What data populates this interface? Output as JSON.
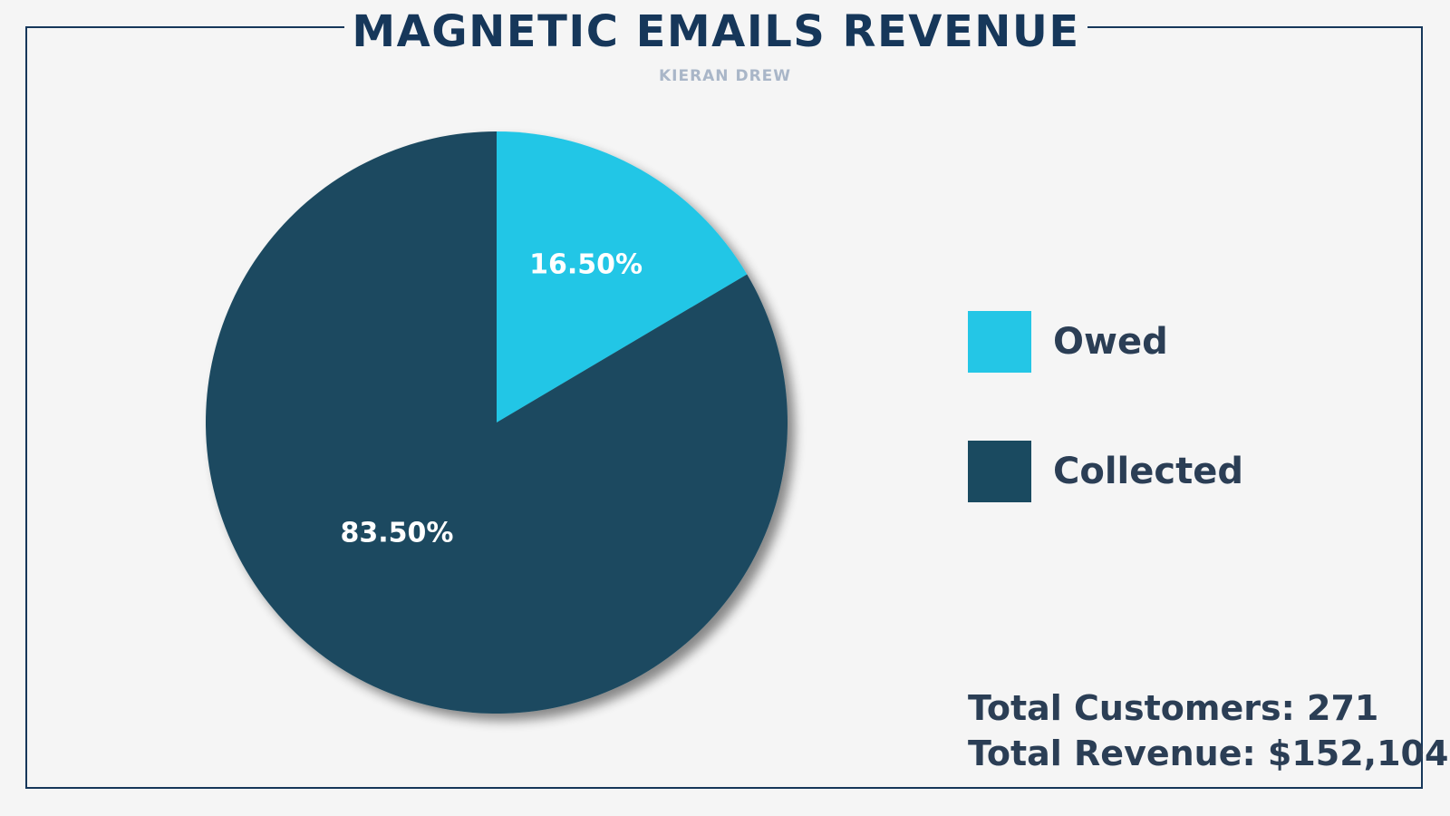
{
  "header": {
    "title": "MAGNETIC EMAILS REVENUE",
    "subtitle": "KIERAN DREW"
  },
  "chart_data": {
    "type": "pie",
    "title": "MAGNETIC EMAILS REVENUE",
    "subtitle": "KIERAN DREW",
    "slices": [
      {
        "label": "Owed",
        "value": 16.5,
        "display": "16.50%",
        "color": "#24c6e6"
      },
      {
        "label": "Collected",
        "value": 83.5,
        "display": "83.50%",
        "color": "#1a4a60"
      }
    ],
    "legend_position": "right"
  },
  "legend": {
    "items": [
      {
        "label": "Owed",
        "color": "#24c6e6"
      },
      {
        "label": "Collected",
        "color": "#1a4a60"
      }
    ]
  },
  "totals": {
    "customers": "Total Customers: 271",
    "revenue": "Total Revenue: $152,104"
  },
  "colors": {
    "background": "#f5f5f5",
    "frame": "#16375a",
    "text": "#2b3e55"
  }
}
